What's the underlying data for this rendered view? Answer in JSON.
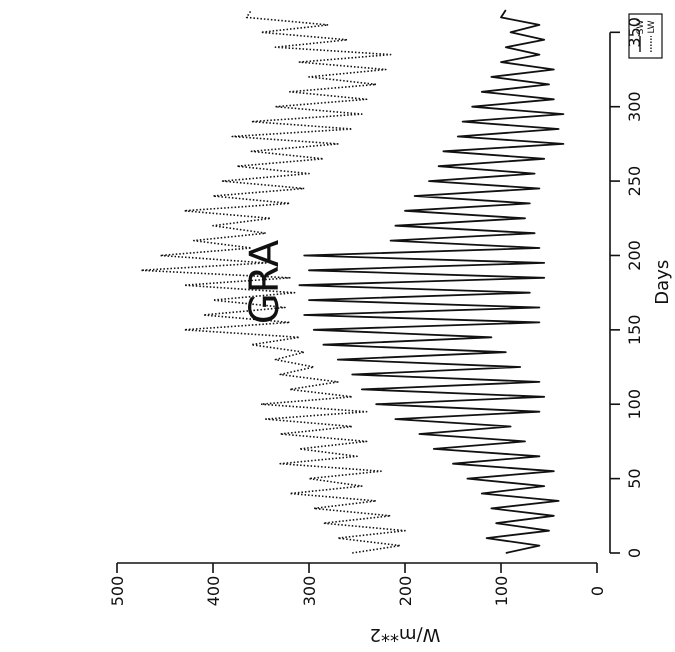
{
  "chart_data": {
    "type": "line",
    "title": "GRA",
    "xlabel": "Days",
    "ylabel": "W/m**2",
    "orientation": "rotated-90-clockwise",
    "xlim": [
      0,
      365
    ],
    "ylim": [
      0,
      500
    ],
    "x_ticks": [
      "0",
      "50",
      "100",
      "150",
      "200",
      "250",
      "300",
      "350"
    ],
    "y_ticks": [
      "0",
      "100",
      "200",
      "300",
      "400",
      "500"
    ],
    "grid": false,
    "legend_position": "top-right",
    "series": [
      {
        "name": "SW",
        "style": "solid",
        "color": "#111111",
        "x": [
          0,
          5,
          10,
          15,
          20,
          25,
          30,
          35,
          40,
          45,
          50,
          55,
          60,
          65,
          70,
          75,
          80,
          85,
          90,
          95,
          100,
          105,
          110,
          115,
          120,
          125,
          130,
          135,
          140,
          145,
          150,
          155,
          160,
          165,
          170,
          175,
          180,
          185,
          190,
          195,
          200,
          205,
          210,
          215,
          220,
          225,
          230,
          235,
          240,
          245,
          250,
          255,
          260,
          265,
          270,
          275,
          280,
          285,
          290,
          295,
          300,
          305,
          310,
          315,
          320,
          325,
          330,
          335,
          340,
          345,
          350,
          355,
          360,
          365
        ],
        "values": [
          95,
          60,
          115,
          50,
          105,
          45,
          110,
          40,
          120,
          55,
          135,
          45,
          150,
          60,
          170,
          75,
          185,
          90,
          210,
          60,
          230,
          55,
          245,
          60,
          255,
          80,
          270,
          95,
          285,
          110,
          295,
          60,
          305,
          60,
          300,
          70,
          310,
          55,
          300,
          55,
          305,
          60,
          215,
          65,
          210,
          75,
          200,
          70,
          190,
          60,
          175,
          65,
          165,
          55,
          160,
          35,
          145,
          40,
          140,
          35,
          130,
          45,
          120,
          50,
          110,
          45,
          100,
          60,
          95,
          55,
          90,
          60,
          100,
          95
        ]
      },
      {
        "name": "LW",
        "style": "dotted",
        "color": "#111111",
        "x": [
          0,
          5,
          10,
          15,
          20,
          25,
          30,
          35,
          40,
          45,
          50,
          55,
          60,
          65,
          70,
          75,
          80,
          85,
          90,
          95,
          100,
          105,
          110,
          115,
          120,
          125,
          130,
          135,
          140,
          145,
          150,
          155,
          160,
          165,
          170,
          175,
          180,
          185,
          190,
          195,
          200,
          205,
          210,
          215,
          220,
          225,
          230,
          235,
          240,
          245,
          250,
          255,
          260,
          265,
          270,
          275,
          280,
          285,
          290,
          295,
          300,
          305,
          310,
          315,
          320,
          325,
          330,
          335,
          340,
          345,
          350,
          355,
          360,
          365
        ],
        "values": [
          255,
          205,
          270,
          200,
          285,
          215,
          295,
          230,
          320,
          245,
          300,
          225,
          330,
          250,
          310,
          240,
          330,
          255,
          345,
          240,
          350,
          255,
          320,
          270,
          330,
          295,
          335,
          305,
          360,
          310,
          430,
          320,
          410,
          325,
          400,
          315,
          430,
          320,
          475,
          345,
          455,
          360,
          420,
          345,
          400,
          340,
          430,
          320,
          400,
          305,
          390,
          300,
          375,
          285,
          360,
          270,
          380,
          255,
          360,
          245,
          335,
          240,
          320,
          230,
          300,
          220,
          310,
          215,
          335,
          260,
          350,
          280,
          365,
          360
        ]
      }
    ]
  }
}
